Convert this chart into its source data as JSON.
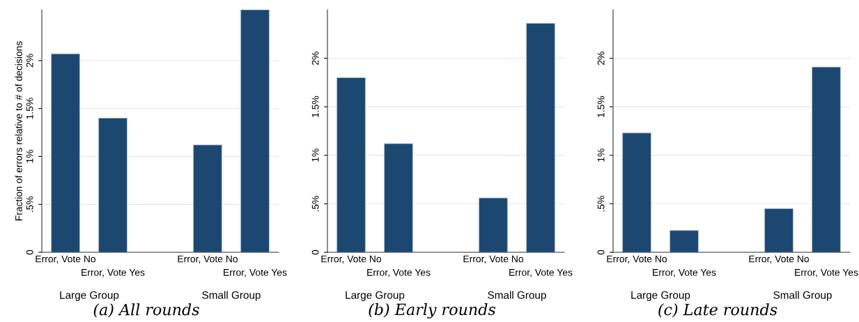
{
  "chart_data": [
    {
      "type": "bar",
      "title": "(a) All rounds",
      "ylabel": "Fraction of errors relative to # of decisions",
      "categories": [
        "Error, Vote No",
        "Error, Vote Yes",
        null,
        "Error, Vote No",
        "Error, Vote Yes"
      ],
      "values": [
        2.07,
        1.4,
        null,
        1.12,
        2.53
      ],
      "color": "#1c4770",
      "ylim": [
        0,
        2.53
      ],
      "yticks": [
        {
          "value": 0,
          "label": "0"
        },
        {
          "value": 0.5,
          "label": ".5%"
        },
        {
          "value": 1,
          "label": "1%"
        },
        {
          "value": 1.5,
          "label": "1.5%"
        },
        {
          "value": 2,
          "label": "2%"
        }
      ],
      "grid": "y",
      "annotations": [
        "Large Group",
        "Small Group"
      ]
    },
    {
      "type": "bar",
      "title": "(b) Early rounds",
      "categories": [
        "Error, Vote No",
        "Error, Vote Yes",
        null,
        "Error, Vote No",
        "Error, Vote Yes"
      ],
      "values": [
        1.8,
        1.12,
        null,
        0.56,
        2.36
      ],
      "color": "#1c4770",
      "ylim": [
        0,
        2.5
      ],
      "yticks": [
        {
          "value": 0,
          "label": "0"
        },
        {
          "value": 0.5,
          "label": ".5%"
        },
        {
          "value": 1,
          "label": "1%"
        },
        {
          "value": 1.5,
          "label": "1.5%"
        },
        {
          "value": 2,
          "label": "2%"
        }
      ],
      "grid": "y",
      "annotations": [
        "Large Group",
        "Small Group"
      ]
    },
    {
      "type": "bar",
      "title": "(c) Late rounds",
      "categories": [
        "Error, Vote No",
        "Error, Vote Yes",
        null,
        "Error, Vote No",
        "Error, Vote Yes"
      ],
      "values": [
        1.23,
        0.225,
        null,
        0.45,
        1.91
      ],
      "color": "#1c4770",
      "ylim": [
        0,
        2.5
      ],
      "yticks": [
        {
          "value": 0,
          "label": "0"
        },
        {
          "value": 0.5,
          "label": ".5%"
        },
        {
          "value": 1,
          "label": "1%"
        },
        {
          "value": 1.5,
          "label": "1.5%"
        },
        {
          "value": 2,
          "label": "2%"
        }
      ],
      "grid": "y",
      "annotations": [
        "Large Group",
        "Small Group"
      ]
    }
  ]
}
